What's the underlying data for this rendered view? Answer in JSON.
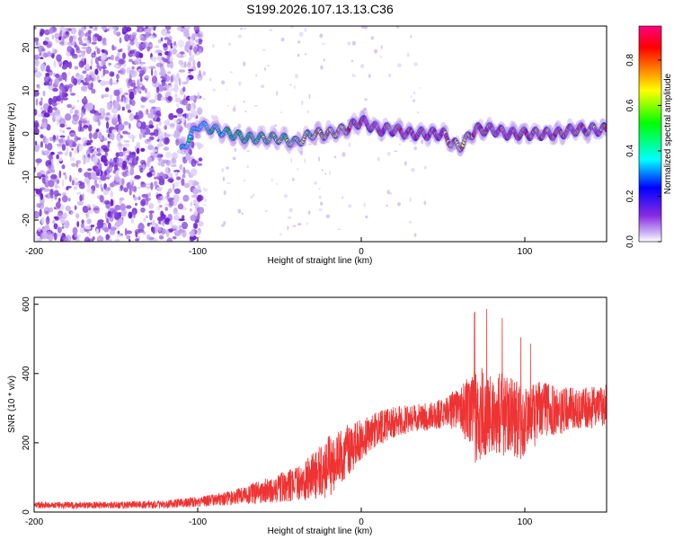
{
  "title": "S199.2026.107.13.13.C36",
  "chart_data": [
    {
      "type": "heatmap",
      "name": "spectrogram",
      "xlabel": "Height of straight line (km)",
      "ylabel": "Frequency (Hz)",
      "xlim": [
        -200,
        150
      ],
      "ylim": [
        -25,
        25
      ],
      "xticks": [
        -200,
        -100,
        0,
        100
      ],
      "yticks": [
        -20,
        -10,
        0,
        10,
        20
      ],
      "ridge_profile": {
        "x": [
          -110,
          -100,
          -90,
          -80,
          -70,
          -60,
          -50,
          -40,
          -30,
          -20,
          -10,
          0,
          10,
          20,
          30,
          40,
          50,
          55,
          60,
          70,
          80,
          90,
          100,
          110,
          120,
          130,
          140,
          150
        ],
        "freq": [
          -4,
          2,
          1,
          0,
          -1,
          -1,
          -1,
          -2,
          0,
          0,
          1,
          3,
          1,
          1,
          0,
          0,
          0,
          -2,
          -3,
          1,
          1,
          0,
          0,
          0,
          0,
          1,
          1,
          1
        ],
        "amplitude": [
          0.4,
          0.35,
          0.4,
          0.45,
          0.5,
          0.55,
          0.55,
          0.6,
          0.7,
          0.75,
          0.8,
          0.95,
          0.95,
          0.9,
          0.9,
          0.95,
          0.9,
          0.8,
          0.75,
          0.9,
          0.9,
          0.9,
          0.9,
          0.9,
          0.9,
          0.9,
          0.9,
          0.9
        ]
      },
      "noise_region_x": [
        -200,
        -100
      ]
    },
    {
      "type": "colorbar",
      "name": "amplitude-colorbar",
      "label": "Normalized spectral amplitude",
      "range": [
        0.0,
        0.95
      ],
      "ticks": [
        0.0,
        0.2,
        0.4,
        0.6,
        0.8
      ],
      "tick_labels": [
        "0.0",
        "0.2",
        "0.4",
        "0.6",
        "0.8"
      ],
      "colors": [
        "#ffffff",
        "#cdb5f5",
        "#8a2be2",
        "#0000ff",
        "#00ffff",
        "#00ff00",
        "#ffff00",
        "#ff8000",
        "#ff0000",
        "#ff0080"
      ]
    },
    {
      "type": "line",
      "name": "snr-line",
      "xlabel": "Height of straight line (km)",
      "ylabel": "SNR (10 * v/v)",
      "xlim": [
        -200,
        150
      ],
      "ylim": [
        0,
        620
      ],
      "xticks": [
        -200,
        -100,
        0,
        100
      ],
      "yticks": [
        0,
        200,
        400,
        600
      ],
      "color": "#ee3333",
      "profile": {
        "x": [
          -200,
          -150,
          -120,
          -100,
          -80,
          -60,
          -40,
          -20,
          -10,
          0,
          10,
          20,
          30,
          40,
          50,
          60,
          70,
          80,
          90,
          100,
          110,
          120,
          130,
          140,
          150
        ],
        "mean": [
          20,
          20,
          22,
          30,
          40,
          60,
          80,
          130,
          170,
          210,
          240,
          260,
          270,
          275,
          285,
          300,
          280,
          300,
          280,
          250,
          300,
          290,
          300,
          300,
          310
        ],
        "spread": [
          10,
          10,
          12,
          15,
          20,
          35,
          50,
          90,
          80,
          60,
          50,
          45,
          40,
          40,
          45,
          60,
          140,
          130,
          120,
          110,
          80,
          70,
          60,
          60,
          60
        ]
      }
    }
  ]
}
